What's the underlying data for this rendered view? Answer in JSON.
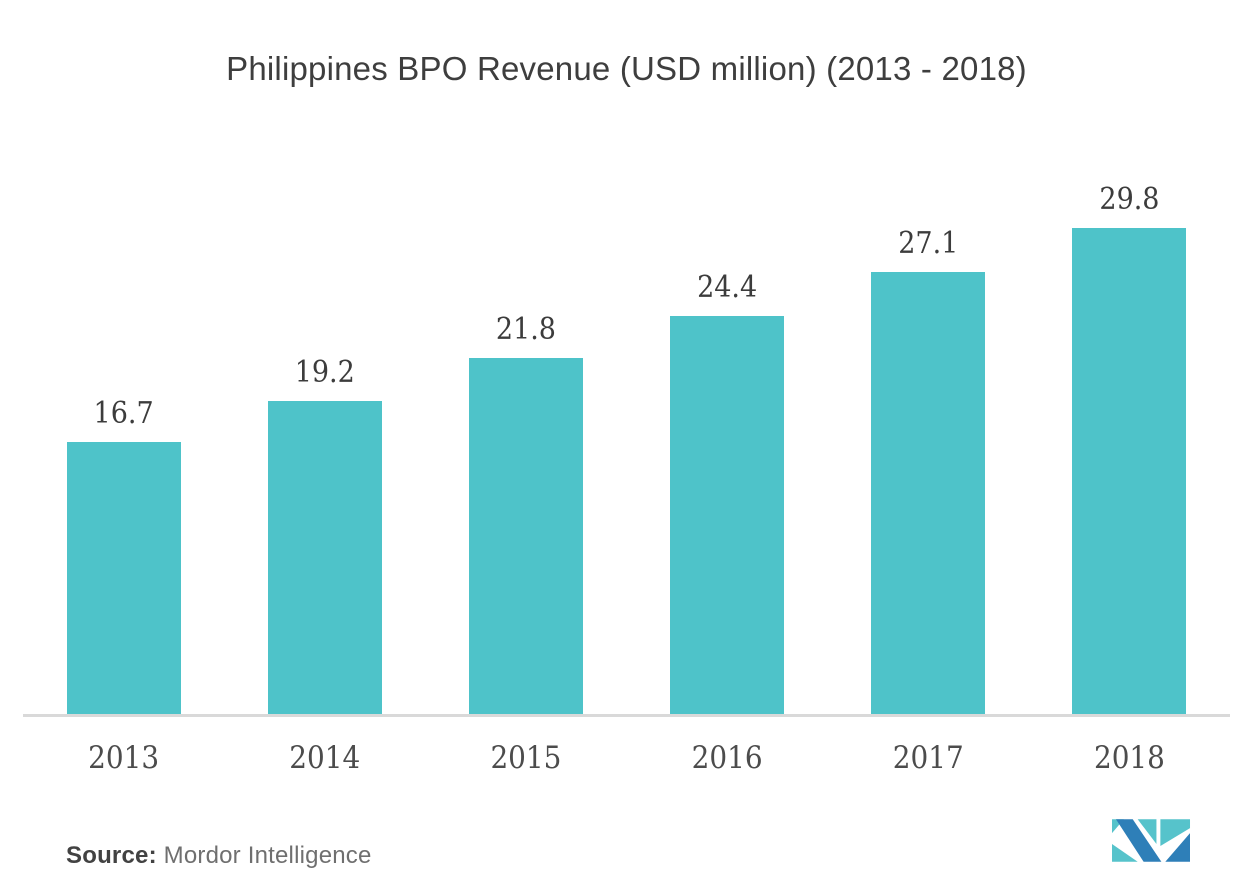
{
  "title": "Philippines BPO Revenue (USD million) (2013 - 2018)",
  "chart_data": {
    "type": "bar",
    "title": "Philippines BPO Revenue (USD million) (2013 - 2018)",
    "categories": [
      "2013",
      "2014",
      "2015",
      "2016",
      "2017",
      "2018"
    ],
    "values": [
      16.7,
      19.2,
      21.8,
      24.4,
      27.1,
      29.8
    ],
    "value_labels": [
      "16.7",
      "19.2",
      "21.8",
      "24.4",
      "27.1",
      "29.8"
    ],
    "series_name": "BPO Revenue (USD million)",
    "xlabel": "",
    "ylabel": "",
    "ylim": [
      0,
      32
    ],
    "grid": false,
    "legend": "none",
    "bar_color": "#4ec3c9",
    "label_color": "#3c3c3c",
    "axis_line_color": "#d9d9d9"
  },
  "source": {
    "label": "Source:",
    "text": "Mordor Intelligence"
  },
  "logo": {
    "name": "mordor-intelligence-logo",
    "teal": "#56c3cb",
    "blue": "#2e7fb8"
  },
  "colors": {
    "background": "#ffffff",
    "title_text": "#3e3e3e",
    "tick_text": "#4c4c4c",
    "source_bold_text": "#424242",
    "source_text": "#6f6f6f"
  }
}
